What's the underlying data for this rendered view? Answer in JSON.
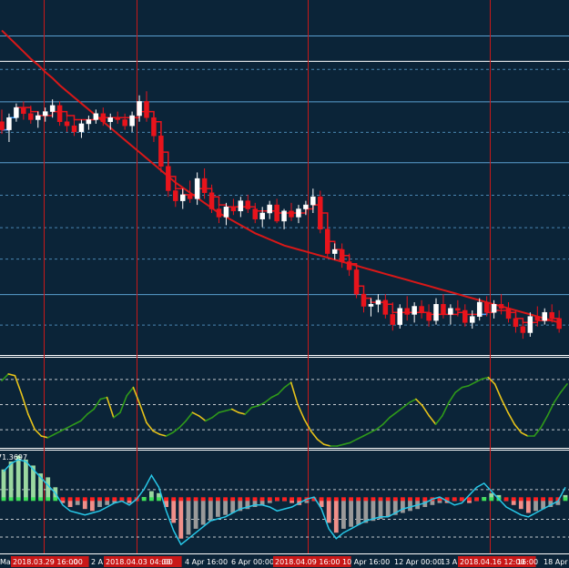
{
  "chart_data": {
    "type": "candlestick",
    "background": "#0b2438",
    "colors": {
      "bull_candle": "#ffffff",
      "bear_candle": "#e8141c",
      "ma_line": "#d81818",
      "stepline_up": "#3aa0ff",
      "stepline_down": "#e8141c",
      "grid": "#5a9fd0",
      "separator": "#c81818",
      "osc_up": "#2f9a1a",
      "osc_down": "#e6c21a",
      "hist_positive": "#9ad8a0",
      "hist_negative": "#f0908a",
      "hist_neutral": "#9a9a9a",
      "signal_line": "#27c8e8",
      "dots_green": "#3ee05a",
      "dots_red": "#ff2020"
    },
    "x_axis": {
      "ticks": [
        {
          "label": "Ma",
          "x_pct": 0.0
        },
        {
          "label": "2018.03.29 16:00",
          "highlighted": true
        },
        {
          "label": ":00"
        },
        {
          "label": "2 A"
        },
        {
          "label": "2018.04.03 04:00",
          "highlighted": true
        },
        {
          "label": ":00"
        },
        {
          "label": "4 Apr 16:00"
        },
        {
          "label": "6 Apr 00:00"
        },
        {
          "label": "2018.04.09 16:00",
          "highlighted": true
        },
        {
          "label": "10 Apr 16:00"
        },
        {
          "label": "12 Apr 00:00"
        },
        {
          "label": "13 A"
        },
        {
          "label": "2018.04.16 12:00",
          "highlighted": true
        },
        {
          "label": "16:00"
        },
        {
          "label": "18 Apr"
        }
      ]
    },
    "panels": {
      "price": {
        "candles": [
          [
            1.247,
            1.2482,
            1.2458,
            1.2462
          ],
          [
            1.2462,
            1.2478,
            1.245,
            1.2474
          ],
          [
            1.2474,
            1.2488,
            1.247,
            1.2484
          ],
          [
            1.2484,
            1.249,
            1.2472,
            1.2478
          ],
          [
            1.2478,
            1.2486,
            1.2468,
            1.2472
          ],
          [
            1.2472,
            1.248,
            1.2464,
            1.2476
          ],
          [
            1.2476,
            1.2484,
            1.247,
            1.248
          ],
          [
            1.248,
            1.2492,
            1.2474,
            1.2486
          ],
          [
            1.2486,
            1.249,
            1.2466,
            1.247
          ],
          [
            1.247,
            1.2478,
            1.246,
            1.2466
          ],
          [
            1.2466,
            1.2474,
            1.2456,
            1.246
          ],
          [
            1.246,
            1.2472,
            1.2454,
            1.2468
          ],
          [
            1.2468,
            1.2476,
            1.2462,
            1.2472
          ],
          [
            1.2472,
            1.2482,
            1.2468,
            1.2478
          ],
          [
            1.2478,
            1.2484,
            1.2466,
            1.247
          ],
          [
            1.247,
            1.2478,
            1.2462,
            1.2474
          ],
          [
            1.2474,
            1.248,
            1.2468,
            1.2472
          ],
          [
            1.2472,
            1.2478,
            1.2462,
            1.2466
          ],
          [
            1.2466,
            1.248,
            1.246,
            1.2476
          ],
          [
            1.2476,
            1.2496,
            1.247,
            1.249
          ],
          [
            1.249,
            1.25,
            1.247,
            1.2474
          ],
          [
            1.2474,
            1.248,
            1.245,
            1.2456
          ],
          [
            1.2456,
            1.2462,
            1.242,
            1.2426
          ],
          [
            1.2426,
            1.2434,
            1.2396,
            1.2402
          ],
          [
            1.2402,
            1.241,
            1.2386,
            1.2392
          ],
          [
            1.2392,
            1.2404,
            1.2384,
            1.2398
          ],
          [
            1.2398,
            1.2412,
            1.239,
            1.2394
          ],
          [
            1.2394,
            1.242,
            1.2388,
            1.2414
          ],
          [
            1.2414,
            1.2424,
            1.2394,
            1.24
          ],
          [
            1.24,
            1.2408,
            1.238,
            1.2384
          ],
          [
            1.2384,
            1.2392,
            1.237,
            1.2376
          ],
          [
            1.2376,
            1.239,
            1.2368,
            1.2386
          ],
          [
            1.2386,
            1.2394,
            1.2378,
            1.2382
          ],
          [
            1.2382,
            1.2396,
            1.2376,
            1.2392
          ],
          [
            1.2392,
            1.2398,
            1.238,
            1.2384
          ],
          [
            1.2384,
            1.239,
            1.237,
            1.2374
          ],
          [
            1.2374,
            1.2386,
            1.2366,
            1.238
          ],
          [
            1.238,
            1.2392,
            1.2374,
            1.2388
          ],
          [
            1.2388,
            1.2394,
            1.237,
            1.2372
          ],
          [
            1.2372,
            1.2384,
            1.2364,
            1.2382
          ],
          [
            1.2382,
            1.239,
            1.2372,
            1.2376
          ],
          [
            1.2376,
            1.2388,
            1.237,
            1.2384
          ],
          [
            1.2384,
            1.2392,
            1.2378,
            1.2388
          ],
          [
            1.2388,
            1.2404,
            1.238,
            1.2396
          ],
          [
            1.2396,
            1.2402,
            1.236,
            1.2364
          ],
          [
            1.2364,
            1.2372,
            1.2336,
            1.234
          ],
          [
            1.234,
            1.235,
            1.2334,
            1.2344
          ],
          [
            1.2344,
            1.235,
            1.2326,
            1.2332
          ],
          [
            1.2332,
            1.234,
            1.2318,
            1.2324
          ],
          [
            1.2324,
            1.233,
            1.2296,
            1.23
          ],
          [
            1.23,
            1.2308,
            1.2282,
            1.2288
          ],
          [
            1.2288,
            1.2296,
            1.2278,
            1.229
          ],
          [
            1.229,
            1.23,
            1.2282,
            1.2294
          ],
          [
            1.2294,
            1.23,
            1.2276,
            1.228
          ],
          [
            1.228,
            1.2292,
            1.2264,
            1.227
          ],
          [
            1.227,
            1.229,
            1.2266,
            1.2286
          ],
          [
            1.2286,
            1.2298,
            1.2274,
            1.228
          ],
          [
            1.228,
            1.2292,
            1.2272,
            1.2288
          ],
          [
            1.2288,
            1.2294,
            1.2276,
            1.2282
          ],
          [
            1.2282,
            1.229,
            1.2268,
            1.2274
          ],
          [
            1.2274,
            1.2296,
            1.227,
            1.229
          ],
          [
            1.229,
            1.23,
            1.2276,
            1.228
          ],
          [
            1.228,
            1.229,
            1.227,
            1.2286
          ],
          [
            1.2286,
            1.2294,
            1.2278,
            1.2284
          ],
          [
            1.2284,
            1.229,
            1.2268,
            1.2272
          ],
          [
            1.2272,
            1.2284,
            1.2266,
            1.2278
          ],
          [
            1.2278,
            1.2296,
            1.2274,
            1.2292
          ],
          [
            1.2292,
            1.2298,
            1.2278,
            1.2282
          ],
          [
            1.2282,
            1.2294,
            1.2276,
            1.229
          ],
          [
            1.229,
            1.23,
            1.228,
            1.2286
          ],
          [
            1.2286,
            1.2292,
            1.2272,
            1.2276
          ],
          [
            1.2276,
            1.2284,
            1.2262,
            1.2268
          ],
          [
            1.2268,
            1.2276,
            1.2256,
            1.2262
          ],
          [
            1.2262,
            1.2282,
            1.2258,
            1.2278
          ],
          [
            1.2278,
            1.2288,
            1.2268,
            1.2274
          ],
          [
            1.2274,
            1.2286,
            1.227,
            1.2282
          ],
          [
            1.2282,
            1.229,
            1.2272,
            1.2276
          ],
          [
            1.2276,
            1.2284,
            1.2262,
            1.2266
          ]
        ],
        "ma_values": [
          1.256,
          1.2553,
          1.2546,
          1.2539,
          1.2532,
          1.2526,
          1.2519,
          1.2513,
          1.2506,
          1.25,
          1.2494,
          1.2488,
          1.2482,
          1.2476,
          1.247,
          1.2464,
          1.2458,
          1.2452,
          1.2446,
          1.244,
          1.2434,
          1.2428,
          1.2422,
          1.2416,
          1.241,
          1.2405,
          1.24,
          1.2395,
          1.239,
          1.2385,
          1.238,
          1.2376,
          1.2372,
          1.2368,
          1.2364,
          1.236,
          1.2357,
          1.2354,
          1.2351,
          1.2348,
          1.2346,
          1.2344,
          1.2342,
          1.234,
          1.2338,
          1.2336,
          1.2334,
          1.2332,
          1.233,
          1.2328,
          1.2326,
          1.2324,
          1.2322,
          1.232,
          1.2318,
          1.2316,
          1.2314,
          1.2312,
          1.231,
          1.2308,
          1.2306,
          1.2304,
          1.2302,
          1.23,
          1.2298,
          1.2296,
          1.2294,
          1.2292,
          1.229,
          1.2288,
          1.2286,
          1.2284,
          1.2282,
          1.228,
          1.2278,
          1.2276,
          1.2274,
          1.2272
        ],
        "stepline_values": [
          1.2462,
          1.2474,
          1.2484,
          1.2484,
          1.248,
          1.2476,
          1.2476,
          1.248,
          1.248,
          1.2476,
          1.2472,
          1.2472,
          1.2472,
          1.2474,
          1.2474,
          1.2474,
          1.2474,
          1.2474,
          1.2474,
          1.248,
          1.248,
          1.247,
          1.244,
          1.2416,
          1.2404,
          1.2398,
          1.2398,
          1.2404,
          1.2404,
          1.2396,
          1.2388,
          1.2386,
          1.2386,
          1.2386,
          1.2386,
          1.2382,
          1.2382,
          1.2382,
          1.238,
          1.238,
          1.238,
          1.238,
          1.2384,
          1.2388,
          1.238,
          1.2352,
          1.2344,
          1.2338,
          1.233,
          1.2308,
          1.2296,
          1.2292,
          1.2292,
          1.229,
          1.2282,
          1.2282,
          1.2282,
          1.2282,
          1.2282,
          1.228,
          1.228,
          1.228,
          1.228,
          1.2282,
          1.228,
          1.228,
          1.228,
          1.2282,
          1.2284,
          1.2284,
          1.2282,
          1.2276,
          1.2272,
          1.2272,
          1.2274,
          1.2274,
          1.2276,
          1.2272
        ],
        "stepline_up_segments": [
          [
            0,
            2
          ],
          [
            66,
            67
          ]
        ],
        "ylim": [
          1.224,
          1.259
        ],
        "grid_solid": [
          1.2555,
          1.249,
          1.243,
          1.23
        ],
        "grid_dashed": [
          1.2522,
          1.246,
          1.2398,
          1.2366,
          1.2335,
          1.227
        ],
        "top_rule": 1.253
      },
      "oscillator": {
        "values": [
          78,
          86,
          84,
          62,
          38,
          20,
          12,
          10,
          14,
          18,
          22,
          26,
          30,
          38,
          44,
          56,
          58,
          34,
          40,
          60,
          70,
          50,
          28,
          18,
          14,
          12,
          16,
          22,
          30,
          40,
          36,
          30,
          34,
          40,
          42,
          44,
          40,
          38,
          46,
          48,
          52,
          58,
          62,
          70,
          76,
          50,
          32,
          18,
          8,
          2,
          0,
          0,
          2,
          4,
          8,
          12,
          16,
          20,
          26,
          34,
          40,
          46,
          52,
          56,
          48,
          36,
          26,
          36,
          52,
          64,
          70,
          72,
          76,
          80,
          82,
          74,
          56,
          40,
          26,
          16,
          12,
          12,
          22,
          36,
          52,
          64,
          74
        ],
        "ylim": [
          0,
          100
        ],
        "levels_dashed": [
          80,
          50,
          20
        ]
      },
      "macd_hist": {
        "label": "71.3697",
        "values": [
          30,
          38,
          44,
          40,
          34,
          26,
          22,
          12,
          -4,
          -8,
          -6,
          -10,
          -12,
          -8,
          -6,
          -4,
          -2,
          -4,
          -2,
          2,
          8,
          6,
          -8,
          -24,
          -40,
          -36,
          -30,
          -26,
          -22,
          -18,
          -16,
          -14,
          -12,
          -10,
          -8,
          -6,
          -4,
          -2,
          -2,
          -4,
          -6,
          -4,
          -2,
          -8,
          -24,
          -34,
          -30,
          -28,
          -26,
          -24,
          -22,
          -20,
          -18,
          -16,
          -14,
          -12,
          -10,
          -8,
          -6,
          -4,
          -4,
          -2,
          -2,
          -4,
          -2,
          2,
          6,
          4,
          -2,
          -6,
          -10,
          -14,
          -12,
          -10,
          -8,
          -6,
          4
        ],
        "signal": [
          28,
          36,
          40,
          38,
          30,
          22,
          14,
          6,
          -6,
          -12,
          -14,
          -16,
          -14,
          -12,
          -8,
          -4,
          -2,
          -6,
          0,
          10,
          24,
          12,
          -12,
          -32,
          -46,
          -40,
          -34,
          -28,
          -22,
          -20,
          -18,
          -14,
          -10,
          -8,
          -6,
          -6,
          -8,
          -12,
          -10,
          -8,
          -4,
          0,
          2,
          -10,
          -30,
          -40,
          -34,
          -30,
          -26,
          -22,
          -20,
          -18,
          -18,
          -14,
          -10,
          -8,
          -6,
          -4,
          0,
          2,
          -2,
          -6,
          -4,
          4,
          12,
          16,
          8,
          0,
          -8,
          -12,
          -16,
          -18,
          -14,
          -10,
          -6,
          -2,
          12
        ],
        "ylim": [
          -55,
          50
        ],
        "levels_dashed": [
          10,
          -20,
          -38
        ]
      }
    },
    "separators_count": 5
  },
  "date_labels": [
    "Ma",
    "2018.03.29 16:00",
    ":00",
    "2 A",
    "2018.04.03 04:00",
    ":00",
    "4 Apr 16:00",
    "6 Apr 00:00",
    "2018.04.09 16:00",
    "10 Apr 16:00",
    "12 Apr 00:00",
    "13 A",
    "2018.04.16 12:00",
    "16:00",
    "18 Apr"
  ],
  "hist_label": "71.3697"
}
